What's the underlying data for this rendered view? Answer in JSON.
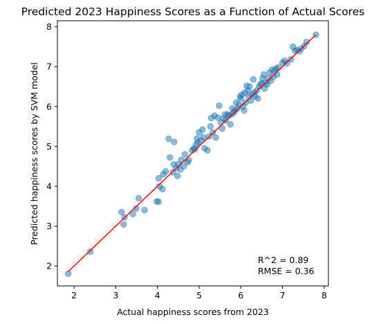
{
  "chart_data": {
    "type": "scatter",
    "title": "Predicted 2023 Happiness Scores as a Function of Actual Scores",
    "xlabel": "Actual happiness scores from 2023",
    "ylabel": "Predicted happiness scores by SVM model",
    "xlim": [
      1.6,
      8.1
    ],
    "ylim": [
      1.5,
      8.15
    ],
    "x_ticks": [
      2,
      3,
      4,
      5,
      6,
      7,
      8
    ],
    "y_ticks": [
      2,
      3,
      4,
      5,
      6,
      7,
      8
    ],
    "grid": false,
    "colors": {
      "points": "#1f77b4",
      "fit_line": "#ff0000"
    },
    "fit_line": {
      "x": [
        1.86,
        7.8
      ],
      "y": [
        1.86,
        7.8
      ]
    },
    "annotations": [
      "R^2 = 0.89",
      "RMSE = 0.36"
    ],
    "points": [
      [
        1.86,
        1.81
      ],
      [
        2.39,
        2.36
      ],
      [
        3.14,
        3.35
      ],
      [
        3.19,
        3.04
      ],
      [
        3.21,
        3.22
      ],
      [
        3.41,
        3.3
      ],
      [
        3.49,
        3.44
      ],
      [
        3.55,
        3.7
      ],
      [
        3.69,
        3.4
      ],
      [
        3.98,
        3.62
      ],
      [
        4.03,
        3.61
      ],
      [
        4.03,
        4.2
      ],
      [
        4.05,
        4.0
      ],
      [
        4.12,
        3.93
      ],
      [
        4.14,
        4.3
      ],
      [
        4.2,
        4.37
      ],
      [
        4.27,
        5.19
      ],
      [
        4.3,
        4.72
      ],
      [
        4.37,
        4.35
      ],
      [
        4.39,
        4.55
      ],
      [
        4.4,
        5.11
      ],
      [
        4.45,
        4.45
      ],
      [
        4.48,
        4.26
      ],
      [
        4.5,
        4.55
      ],
      [
        4.55,
        4.42
      ],
      [
        4.57,
        4.66
      ],
      [
        4.63,
        4.5
      ],
      [
        4.66,
        4.8
      ],
      [
        4.72,
        4.6
      ],
      [
        4.75,
        4.65
      ],
      [
        4.83,
        4.9
      ],
      [
        4.87,
        4.95
      ],
      [
        4.9,
        4.93
      ],
      [
        4.93,
        5.05
      ],
      [
        4.95,
        5.2
      ],
      [
        4.97,
        5.1
      ],
      [
        5.0,
        5.35
      ],
      [
        5.05,
        5.15
      ],
      [
        5.08,
        5.42
      ],
      [
        5.1,
        5.23
      ],
      [
        5.13,
        4.95
      ],
      [
        5.2,
        4.9
      ],
      [
        5.24,
        5.25
      ],
      [
        5.27,
        5.5
      ],
      [
        5.29,
        5.71
      ],
      [
        5.33,
        5.35
      ],
      [
        5.37,
        5.77
      ],
      [
        5.4,
        5.22
      ],
      [
        5.45,
        5.72
      ],
      [
        5.48,
        6.02
      ],
      [
        5.52,
        5.6
      ],
      [
        5.55,
        5.45
      ],
      [
        5.58,
        5.7
      ],
      [
        5.62,
        5.8
      ],
      [
        5.64,
        5.65
      ],
      [
        5.68,
        5.8
      ],
      [
        5.71,
        5.77
      ],
      [
        5.75,
        5.55
      ],
      [
        5.78,
        5.8
      ],
      [
        5.8,
        5.95
      ],
      [
        5.83,
        5.85
      ],
      [
        5.86,
        5.9
      ],
      [
        5.89,
        6.1
      ],
      [
        5.92,
        5.95
      ],
      [
        5.95,
        6.05
      ],
      [
        5.98,
        6.25
      ],
      [
        6.0,
        6.2
      ],
      [
        6.03,
        6.3
      ],
      [
        6.05,
        6.0
      ],
      [
        6.08,
        5.9
      ],
      [
        6.1,
        6.35
      ],
      [
        6.12,
        6.1
      ],
      [
        6.14,
        6.52
      ],
      [
        6.17,
        6.4
      ],
      [
        6.19,
        6.25
      ],
      [
        6.21,
        6.5
      ],
      [
        6.24,
        6.15
      ],
      [
        6.27,
        6.3
      ],
      [
        6.3,
        6.68
      ],
      [
        6.32,
        6.35
      ],
      [
        6.35,
        6.25
      ],
      [
        6.38,
        6.4
      ],
      [
        6.41,
        6.2
      ],
      [
        6.44,
        6.5
      ],
      [
        6.47,
        6.55
      ],
      [
        6.5,
        6.58
      ],
      [
        6.52,
        6.7
      ],
      [
        6.55,
        6.8
      ],
      [
        6.57,
        6.45
      ],
      [
        6.6,
        6.6
      ],
      [
        6.63,
        6.55
      ],
      [
        6.66,
        6.7
      ],
      [
        6.69,
        6.85
      ],
      [
        6.72,
        6.65
      ],
      [
        6.75,
        6.92
      ],
      [
        6.78,
        6.75
      ],
      [
        6.81,
        6.9
      ],
      [
        6.84,
        6.95
      ],
      [
        6.87,
        6.8
      ],
      [
        6.9,
        6.98
      ],
      [
        7.0,
        7.1
      ],
      [
        7.05,
        7.15
      ],
      [
        7.1,
        7.08
      ],
      [
        7.2,
        7.18
      ],
      [
        7.25,
        7.5
      ],
      [
        7.3,
        7.4
      ],
      [
        7.35,
        7.42
      ],
      [
        7.4,
        7.38
      ],
      [
        7.45,
        7.45
      ],
      [
        7.52,
        7.52
      ],
      [
        7.58,
        7.62
      ],
      [
        7.8,
        7.8
      ]
    ]
  }
}
